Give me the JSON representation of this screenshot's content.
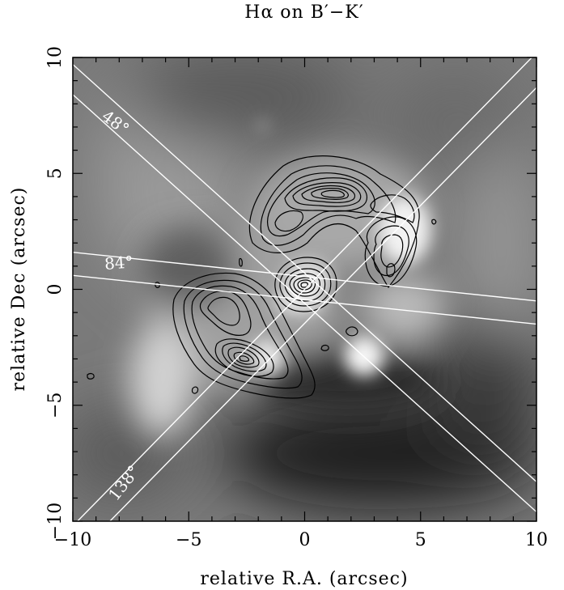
{
  "chart_data": {
    "type": "image-overlay",
    "title": "Hα on B′−K′",
    "xlabel": "relative R.A. (arcsec)",
    "ylabel": "relative Dec (arcsec)",
    "xlim": [
      -10,
      10
    ],
    "ylim": [
      -10,
      10
    ],
    "xticks": [
      -10,
      -5,
      0,
      5,
      10
    ],
    "yticks": [
      -10,
      -5,
      0,
      5,
      10
    ],
    "xtick_labels": [
      "−10",
      "−5",
      "0",
      "5",
      "10"
    ],
    "ytick_labels": [
      "−10",
      "−5",
      "0",
      "5",
      "10"
    ],
    "slits": [
      {
        "label": "48°",
        "pa_deg": 48,
        "lines": [
          [
            -10,
            9.7,
            10,
            -8.3
          ],
          [
            -10,
            8.4,
            10,
            -9.6
          ]
        ]
      },
      {
        "label": "84°",
        "pa_deg": 84,
        "lines": [
          [
            -10,
            1.6,
            10,
            -0.5
          ],
          [
            -10,
            0.6,
            10,
            -1.5
          ]
        ]
      },
      {
        "label": "138°",
        "pa_deg": 138,
        "lines": [
          [
            -9.8,
            -10,
            9.8,
            10
          ],
          [
            -8.4,
            -10,
            10,
            8.7
          ]
        ]
      }
    ],
    "contour_peaks": [
      {
        "x": 1.3,
        "y": 4.2
      },
      {
        "x": -0.3,
        "y": 0.1
      },
      {
        "x": -2.8,
        "y": -3.2
      },
      {
        "x": -3.8,
        "y": -1.5
      },
      {
        "x": 3.7,
        "y": 1.2
      }
    ],
    "colors": {
      "slit": "#ffffff",
      "contour": "#000000",
      "frame": "#000000"
    }
  }
}
